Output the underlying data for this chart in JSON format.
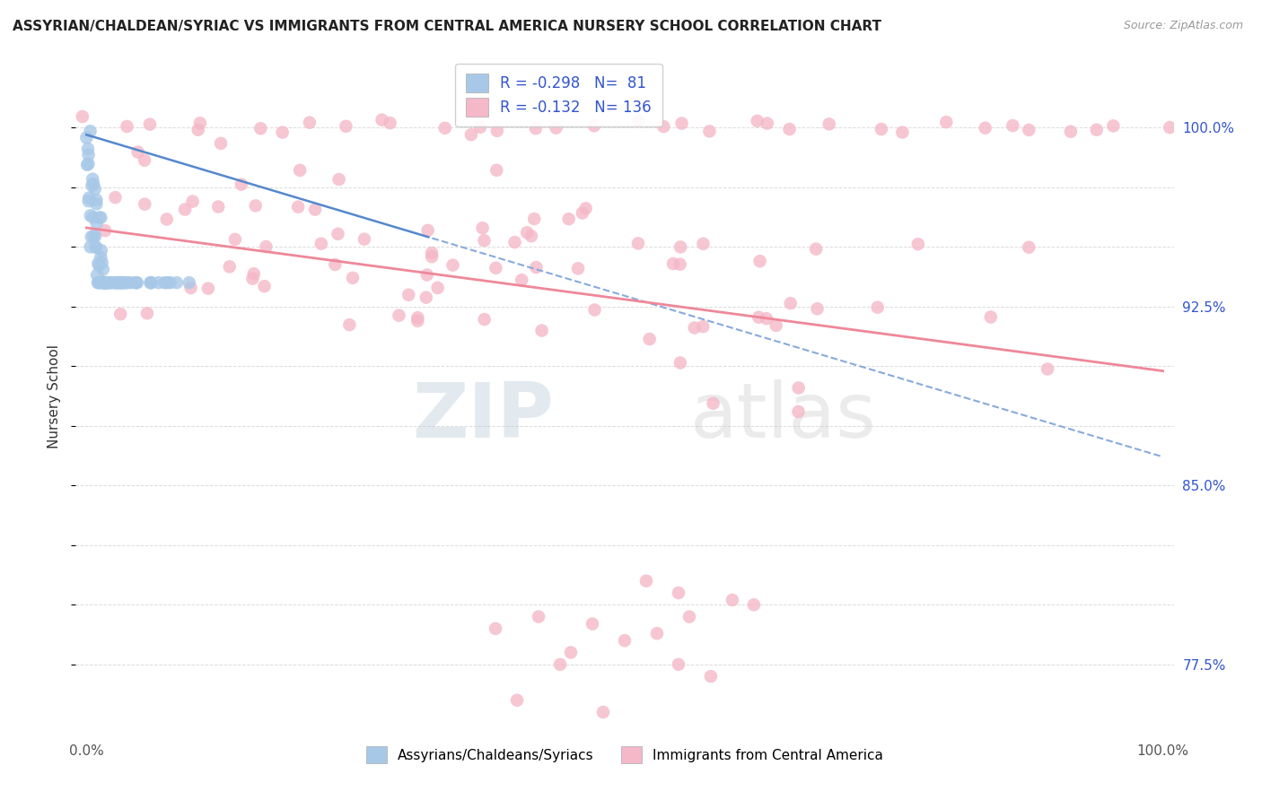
{
  "title": "ASSYRIAN/CHALDEAN/SYRIAC VS IMMIGRANTS FROM CENTRAL AMERICA NURSERY SCHOOL CORRELATION CHART",
  "source": "Source: ZipAtlas.com",
  "ylabel": "Nursery School",
  "yticks": [
    0.775,
    0.8,
    0.825,
    0.85,
    0.875,
    0.9,
    0.925,
    0.95,
    0.975,
    1.0
  ],
  "ytick_labels_right": [
    "77.5%",
    "",
    "",
    "85.0%",
    "",
    "",
    "92.5%",
    "",
    "",
    "100.0%"
  ],
  "ylim": [
    0.745,
    1.03
  ],
  "xlim": [
    -0.01,
    1.01
  ],
  "R_blue": -0.298,
  "N_blue": 81,
  "R_pink": -0.132,
  "N_pink": 136,
  "blue_color": "#a8c8e8",
  "pink_color": "#f4b8c8",
  "blue_line_color": "#5588cc",
  "blue_dash_color": "#88aadd",
  "pink_line_color": "#ee8899",
  "legend_label_blue": "Assyrians/Chaldeans/Syriacs",
  "legend_label_pink": "Immigrants from Central America",
  "watermark_zip": "ZIP",
  "watermark_atlas": "atlas",
  "background_color": "#ffffff",
  "grid_color": "#cccccc",
  "xtick_left": "0.0%",
  "xtick_right": "100.0%"
}
